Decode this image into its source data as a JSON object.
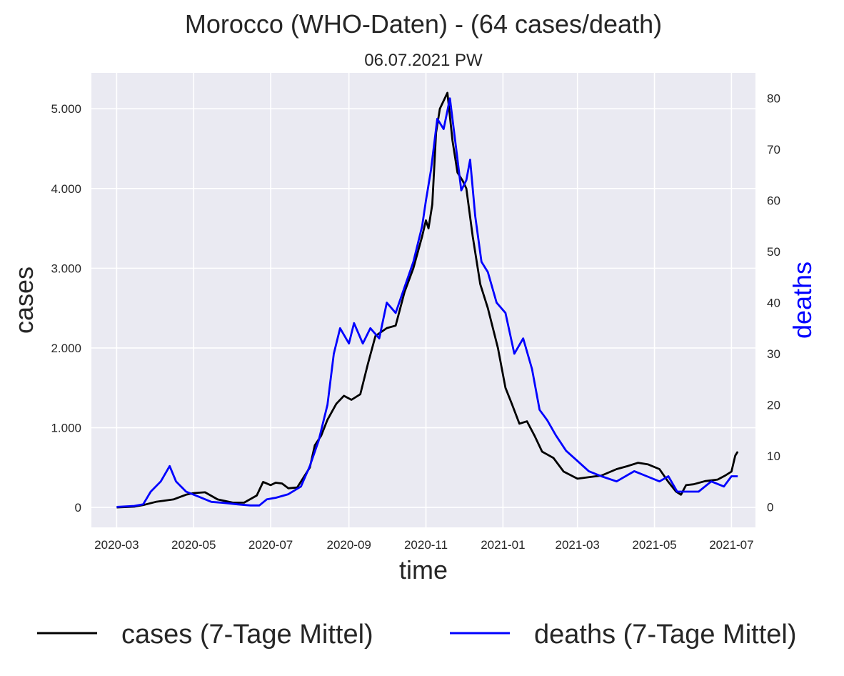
{
  "chart_data": {
    "type": "line",
    "title": "Morocco (WHO-Daten) - (64 cases/death)",
    "subtitle": "06.07.2021 PW",
    "xlabel": "time",
    "ylabel_left": "cases",
    "ylabel_right": "deaths",
    "grid": true,
    "legend_placement": "bottom",
    "x_range": [
      "2020-02-10",
      "2021-07-20"
    ],
    "y_left_range": [
      -250,
      5450
    ],
    "y_right_range": [
      -4,
      85
    ],
    "x_ticks": [
      "2020-03",
      "2020-05",
      "2020-07",
      "2020-09",
      "2020-11",
      "2021-01",
      "2021-03",
      "2021-05",
      "2021-07"
    ],
    "y_left_ticks": [
      {
        "value": 0,
        "label": "0"
      },
      {
        "value": 1000,
        "label": "1.000"
      },
      {
        "value": 2000,
        "label": "2.000"
      },
      {
        "value": 3000,
        "label": "3.000"
      },
      {
        "value": 4000,
        "label": "4.000"
      },
      {
        "value": 5000,
        "label": "5.000"
      }
    ],
    "y_right_ticks": [
      {
        "value": 0,
        "label": "0"
      },
      {
        "value": 10,
        "label": "10"
      },
      {
        "value": 20,
        "label": "20"
      },
      {
        "value": 30,
        "label": "30"
      },
      {
        "value": 40,
        "label": "40"
      },
      {
        "value": 50,
        "label": "50"
      },
      {
        "value": 60,
        "label": "60"
      },
      {
        "value": 70,
        "label": "70"
      },
      {
        "value": 80,
        "label": "80"
      }
    ],
    "colors": {
      "background": "#eaeaf2",
      "grid": "#ffffff",
      "cases": "#000000",
      "deaths": "#0000ff",
      "text": "#262626"
    },
    "series": [
      {
        "name": "cases (7-Tage Mittel)",
        "axis": "left",
        "points": [
          [
            "2020-03-01",
            0
          ],
          [
            "2020-03-15",
            10
          ],
          [
            "2020-03-22",
            30
          ],
          [
            "2020-04-01",
            70
          ],
          [
            "2020-04-15",
            100
          ],
          [
            "2020-04-25",
            160
          ],
          [
            "2020-05-01",
            180
          ],
          [
            "2020-05-10",
            190
          ],
          [
            "2020-05-20",
            100
          ],
          [
            "2020-06-01",
            60
          ],
          [
            "2020-06-10",
            60
          ],
          [
            "2020-06-20",
            150
          ],
          [
            "2020-06-25",
            320
          ],
          [
            "2020-07-01",
            280
          ],
          [
            "2020-07-05",
            310
          ],
          [
            "2020-07-10",
            300
          ],
          [
            "2020-07-15",
            240
          ],
          [
            "2020-07-22",
            250
          ],
          [
            "2020-08-01",
            500
          ],
          [
            "2020-08-05",
            780
          ],
          [
            "2020-08-10",
            900
          ],
          [
            "2020-08-15",
            1100
          ],
          [
            "2020-08-22",
            1300
          ],
          [
            "2020-08-28",
            1400
          ],
          [
            "2020-09-03",
            1350
          ],
          [
            "2020-09-10",
            1420
          ],
          [
            "2020-09-16",
            1800
          ],
          [
            "2020-09-22",
            2150
          ],
          [
            "2020-10-01",
            2250
          ],
          [
            "2020-10-08",
            2280
          ],
          [
            "2020-10-15",
            2700
          ],
          [
            "2020-10-22",
            3000
          ],
          [
            "2020-10-29",
            3400
          ],
          [
            "2020-11-01",
            3600
          ],
          [
            "2020-11-03",
            3500
          ],
          [
            "2020-11-06",
            3800
          ],
          [
            "2020-11-09",
            4700
          ],
          [
            "2020-11-12",
            5000
          ],
          [
            "2020-11-18",
            5200
          ],
          [
            "2020-11-22",
            4600
          ],
          [
            "2020-11-26",
            4200
          ],
          [
            "2020-11-30",
            4100
          ],
          [
            "2020-12-03",
            4000
          ],
          [
            "2020-12-08",
            3400
          ],
          [
            "2020-12-14",
            2800
          ],
          [
            "2020-12-20",
            2500
          ],
          [
            "2020-12-28",
            2000
          ],
          [
            "2021-01-03",
            1500
          ],
          [
            "2021-01-08",
            1300
          ],
          [
            "2021-01-14",
            1050
          ],
          [
            "2021-01-20",
            1080
          ],
          [
            "2021-01-26",
            900
          ],
          [
            "2021-02-01",
            700
          ],
          [
            "2021-02-10",
            620
          ],
          [
            "2021-02-18",
            450
          ],
          [
            "2021-03-01",
            360
          ],
          [
            "2021-03-10",
            380
          ],
          [
            "2021-03-20",
            400
          ],
          [
            "2021-04-01",
            480
          ],
          [
            "2021-04-10",
            520
          ],
          [
            "2021-04-18",
            560
          ],
          [
            "2021-04-26",
            540
          ],
          [
            "2021-05-05",
            480
          ],
          [
            "2021-05-12",
            320
          ],
          [
            "2021-05-18",
            200
          ],
          [
            "2021-05-22",
            160
          ],
          [
            "2021-05-26",
            280
          ],
          [
            "2021-06-01",
            290
          ],
          [
            "2021-06-10",
            330
          ],
          [
            "2021-06-20",
            350
          ],
          [
            "2021-06-26",
            400
          ],
          [
            "2021-07-01",
            450
          ],
          [
            "2021-07-04",
            650
          ],
          [
            "2021-07-06",
            700
          ]
        ]
      },
      {
        "name": "deaths (7-Tage Mittel)",
        "axis": "right",
        "points": [
          [
            "2020-03-01",
            0
          ],
          [
            "2020-03-15",
            0.2
          ],
          [
            "2020-03-22",
            0.5
          ],
          [
            "2020-03-28",
            3
          ],
          [
            "2020-04-05",
            5
          ],
          [
            "2020-04-12",
            8
          ],
          [
            "2020-04-17",
            5
          ],
          [
            "2020-04-25",
            3
          ],
          [
            "2020-05-05",
            2
          ],
          [
            "2020-05-15",
            1
          ],
          [
            "2020-05-25",
            0.8
          ],
          [
            "2020-06-05",
            0.5
          ],
          [
            "2020-06-15",
            0.3
          ],
          [
            "2020-06-22",
            0.3
          ],
          [
            "2020-06-28",
            1.5
          ],
          [
            "2020-07-05",
            1.8
          ],
          [
            "2020-07-15",
            2.5
          ],
          [
            "2020-07-25",
            4
          ],
          [
            "2020-08-01",
            8
          ],
          [
            "2020-08-08",
            13
          ],
          [
            "2020-08-15",
            20
          ],
          [
            "2020-08-20",
            30
          ],
          [
            "2020-08-25",
            35
          ],
          [
            "2020-09-01",
            32
          ],
          [
            "2020-09-05",
            36
          ],
          [
            "2020-09-12",
            32
          ],
          [
            "2020-09-18",
            35
          ],
          [
            "2020-09-25",
            33
          ],
          [
            "2020-10-01",
            40
          ],
          [
            "2020-10-08",
            38
          ],
          [
            "2020-10-15",
            43
          ],
          [
            "2020-10-22",
            48
          ],
          [
            "2020-10-29",
            55
          ],
          [
            "2020-11-01",
            60
          ],
          [
            "2020-11-05",
            66
          ],
          [
            "2020-11-10",
            76
          ],
          [
            "2020-11-15",
            74
          ],
          [
            "2020-11-20",
            80
          ],
          [
            "2020-11-25",
            70
          ],
          [
            "2020-11-29",
            62
          ],
          [
            "2020-12-03",
            64
          ],
          [
            "2020-12-06",
            68
          ],
          [
            "2020-12-10",
            57
          ],
          [
            "2020-12-15",
            48
          ],
          [
            "2020-12-20",
            46
          ],
          [
            "2020-12-27",
            40
          ],
          [
            "2021-01-03",
            38
          ],
          [
            "2021-01-10",
            30
          ],
          [
            "2021-01-17",
            33
          ],
          [
            "2021-01-24",
            27
          ],
          [
            "2021-01-30",
            19
          ],
          [
            "2021-02-05",
            17
          ],
          [
            "2021-02-12",
            14
          ],
          [
            "2021-02-20",
            11
          ],
          [
            "2021-03-01",
            9
          ],
          [
            "2021-03-10",
            7
          ],
          [
            "2021-03-20",
            6
          ],
          [
            "2021-04-01",
            5
          ],
          [
            "2021-04-15",
            7
          ],
          [
            "2021-04-25",
            6
          ],
          [
            "2021-05-05",
            5
          ],
          [
            "2021-05-12",
            6
          ],
          [
            "2021-05-19",
            3
          ],
          [
            "2021-05-26",
            3
          ],
          [
            "2021-06-05",
            3
          ],
          [
            "2021-06-15",
            5
          ],
          [
            "2021-06-25",
            4
          ],
          [
            "2021-07-01",
            6
          ],
          [
            "2021-07-06",
            6
          ]
        ]
      }
    ]
  }
}
